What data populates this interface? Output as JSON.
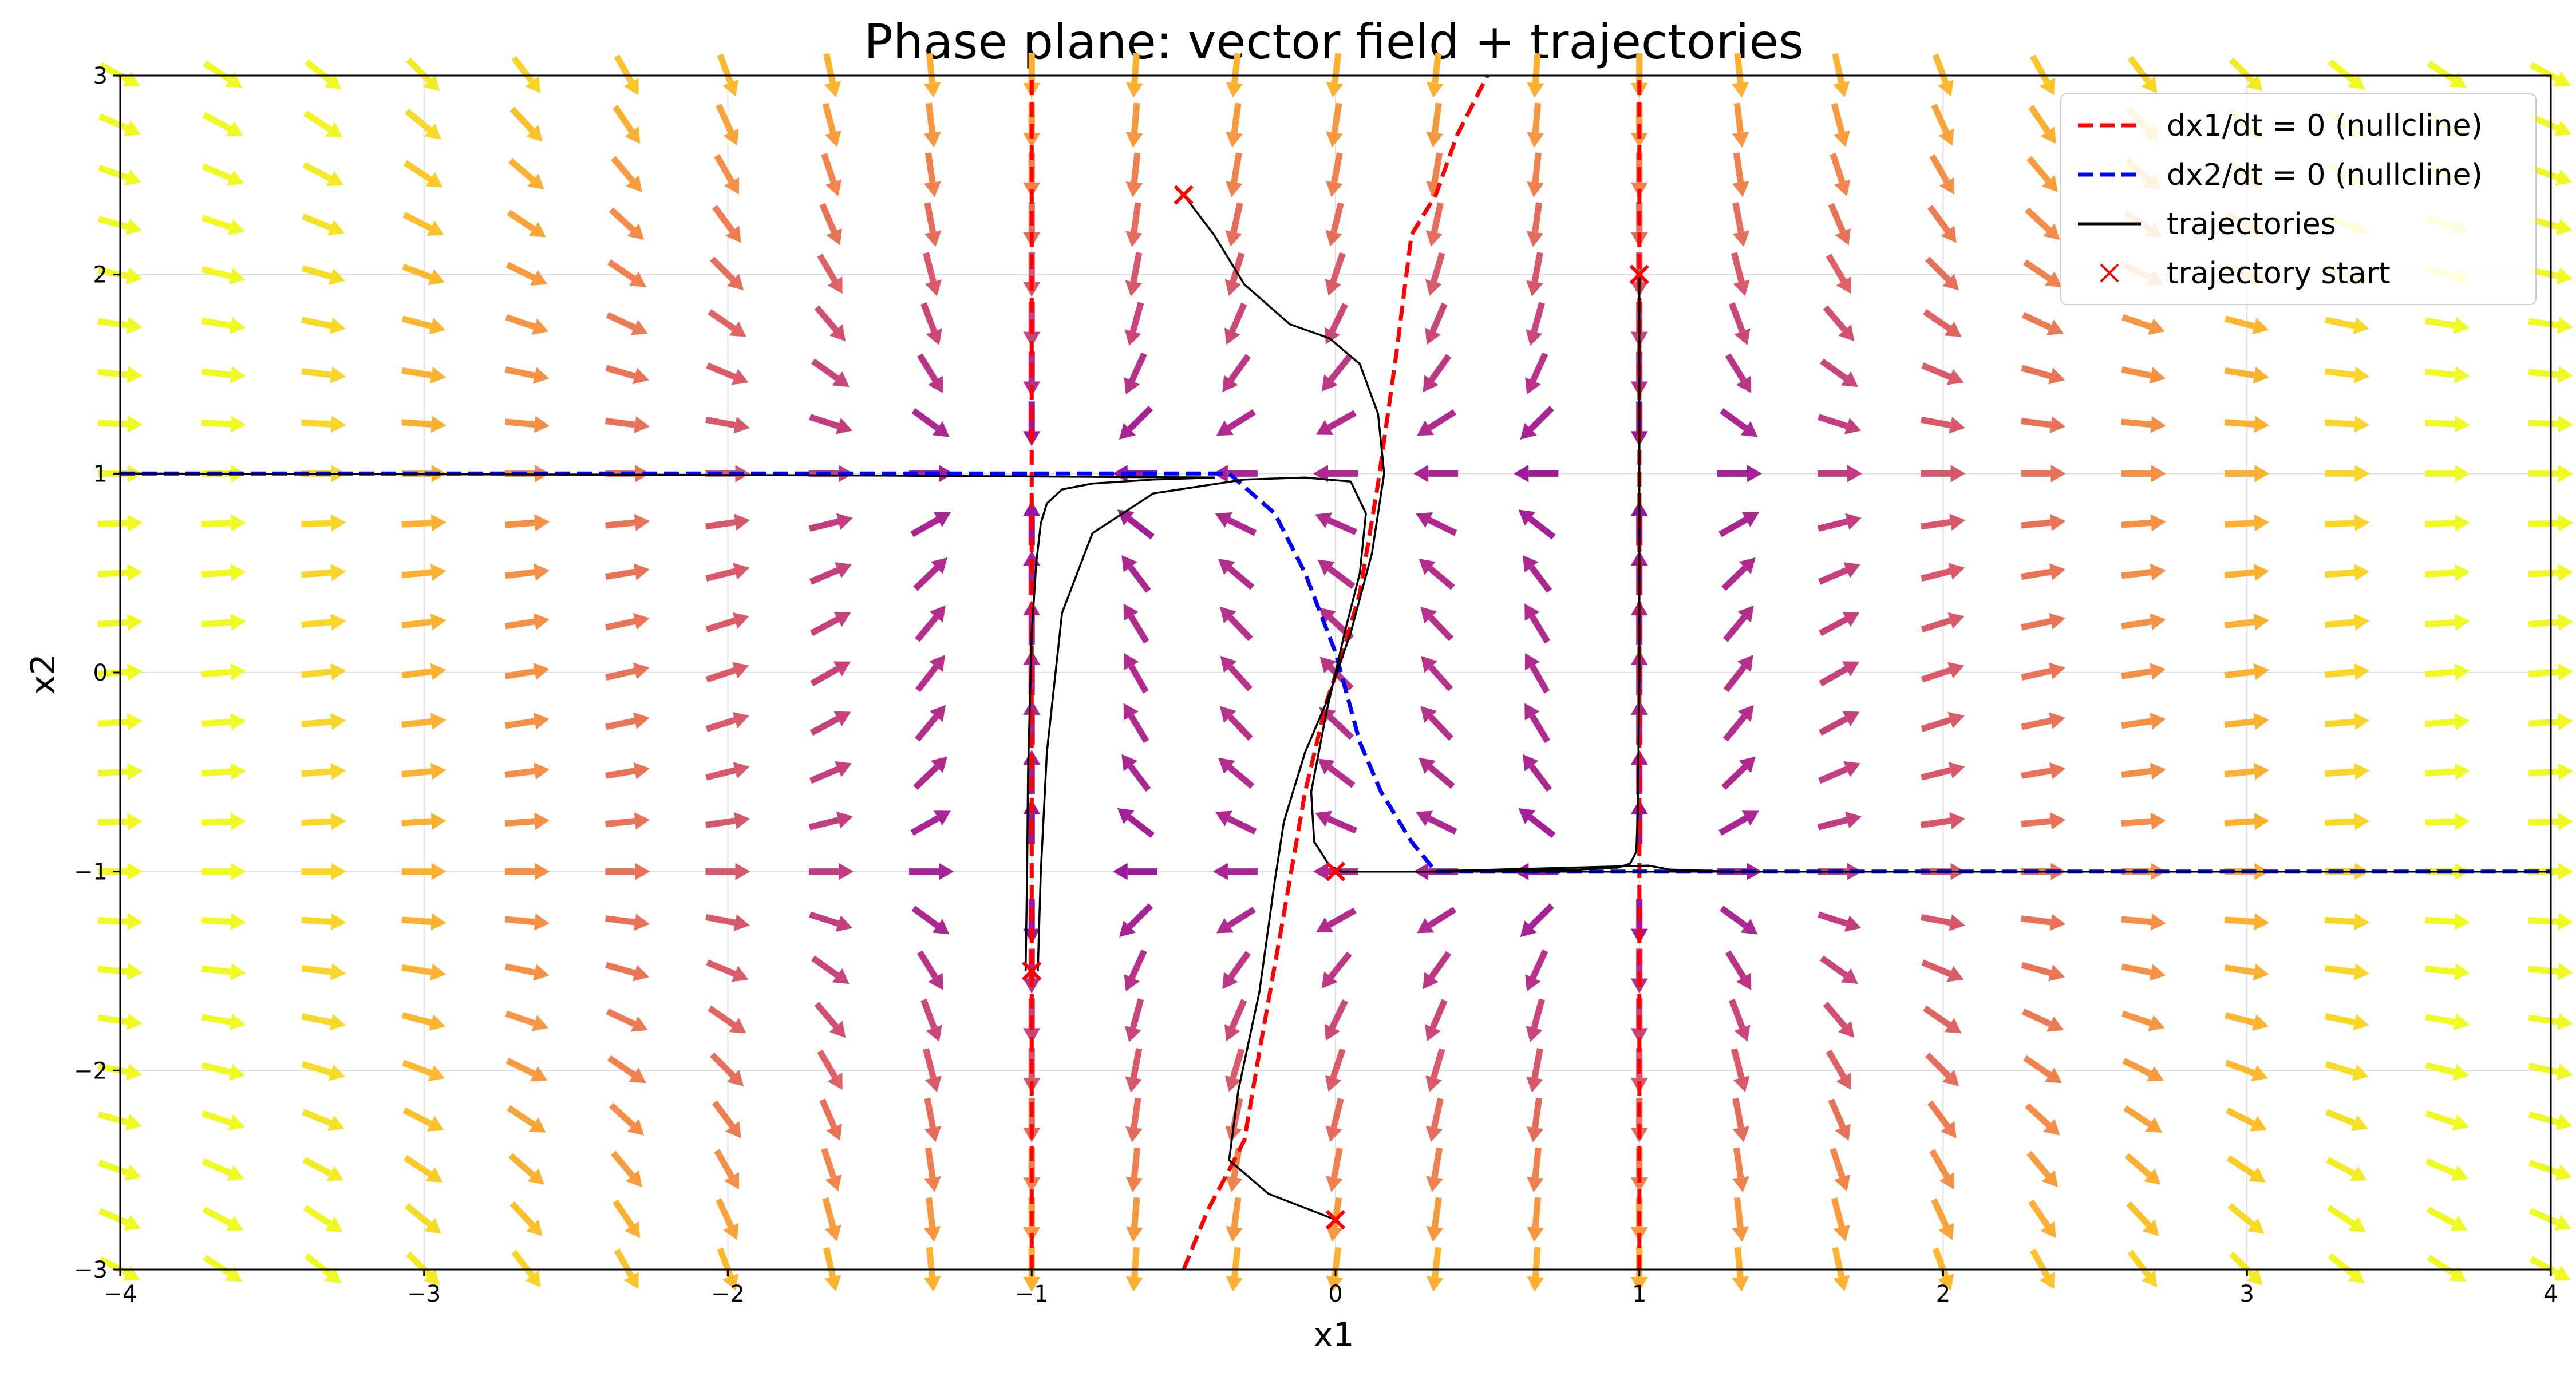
{
  "chart_data": {
    "type": "line",
    "title": "Phase plane: vector field + trajectories",
    "xlabel": "x1",
    "ylabel": "x2",
    "xlim": [
      -4,
      4
    ],
    "ylim": [
      -3,
      3
    ],
    "x_ticks": [
      -4,
      -3,
      -2,
      -1,
      0,
      1,
      2,
      3,
      4
    ],
    "y_ticks": [
      -3,
      -2,
      -1,
      0,
      1,
      2,
      3
    ],
    "x_tick_labels": [
      "−4",
      "−3",
      "−2",
      "−1",
      "0",
      "1",
      "2",
      "3",
      "4"
    ],
    "y_tick_labels": [
      "−3",
      "−2",
      "−1",
      "0",
      "1",
      "2",
      "3"
    ],
    "grid": true,
    "legend_position": "top-right",
    "legend": [
      {
        "label": "dx1/dt = 0 (nullcline)",
        "style": "dashed",
        "color": "#ff0000"
      },
      {
        "label": "dx2/dt = 0 (nullcline)",
        "style": "dashed",
        "color": "#0000ff"
      },
      {
        "label": "trajectories",
        "style": "solid",
        "color": "#000000"
      },
      {
        "label": "trajectory start",
        "style": "marker-x",
        "color": "#ff0000"
      }
    ],
    "vector_field": {
      "colormap": "plasma",
      "x_grid": [
        -4.0,
        -3.66,
        -3.33,
        -3.0,
        -2.66,
        -2.33,
        -2.0,
        -1.66,
        -1.33,
        -1.0,
        -0.66,
        -0.33,
        0.0,
        0.33,
        0.66,
        1.0,
        1.33,
        1.66,
        2.0,
        2.33,
        2.66,
        3.0,
        3.33,
        3.66,
        4.0
      ],
      "y_grid": [
        -3.0,
        -2.75,
        -2.5,
        -2.25,
        -2.0,
        -1.75,
        -1.5,
        -1.25,
        -1.0,
        -0.75,
        -0.5,
        -0.25,
        0.0,
        0.25,
        0.5,
        0.75,
        1.0,
        1.25,
        1.5,
        1.75,
        2.0,
        2.25,
        2.5,
        2.75,
        3.0
      ]
    },
    "series": [
      {
        "kind": "nullcline_dx1",
        "color": "#ff0000",
        "segments": [
          {
            "x": [
              -1,
              -1
            ],
            "y": [
              -3,
              3
            ]
          },
          {
            "x": [
              1,
              1
            ],
            "y": [
              -3,
              3
            ]
          },
          {
            "x": [
              -0.5,
              -0.42,
              -0.35,
              -0.3,
              -0.25,
              -0.18,
              -0.1,
              -0.03,
              0.02,
              0.08,
              0.14,
              0.2,
              0.25,
              0.33,
              0.4,
              0.5
            ],
            "y": [
              -3.0,
              -2.7,
              -2.5,
              -2.35,
              -1.9,
              -1.3,
              -0.6,
              -0.15,
              0.08,
              0.4,
              0.95,
              1.6,
              2.2,
              2.4,
              2.7,
              3.0
            ]
          }
        ]
      },
      {
        "kind": "nullcline_dx2",
        "color": "#0000ff",
        "segments": [
          {
            "x": [
              -4,
              -0.35,
              -0.2,
              -0.1,
              0.0,
              0.08,
              0.15,
              0.25,
              0.33,
              4.0
            ],
            "y": [
              1,
              1,
              0.8,
              0.5,
              0.1,
              -0.35,
              -0.6,
              -0.85,
              -1,
              -1
            ]
          }
        ]
      },
      {
        "kind": "trajectory",
        "color": "#000000",
        "x": [
          -1.02,
          -1.015,
          -1.012,
          -1.0,
          -0.985,
          -0.97,
          -0.95,
          -0.9,
          -0.8,
          -0.6,
          -0.4,
          -1.5,
          -2.5,
          -4.0
        ],
        "y": [
          -1.5,
          -1.0,
          -0.5,
          0.2,
          0.55,
          0.75,
          0.85,
          0.92,
          0.95,
          0.97,
          0.98,
          0.99,
          0.995,
          1.0
        ]
      },
      {
        "kind": "trajectory",
        "color": "#000000",
        "x": [
          -0.98,
          -0.97,
          -0.95,
          -0.9,
          -0.8,
          -0.6,
          -0.3,
          -0.1,
          0.05,
          0.1,
          0.08,
          0.03,
          -0.03,
          -0.08,
          -0.07,
          -0.02,
          0.02,
          0.1,
          0.33,
          1.0,
          4.0
        ],
        "y": [
          -1.5,
          -1.0,
          -0.4,
          0.3,
          0.7,
          0.9,
          0.97,
          0.98,
          0.96,
          0.8,
          0.5,
          0.2,
          -0.2,
          -0.6,
          -0.85,
          -0.97,
          -1.0,
          -1.0,
          -1.0,
          -1.0,
          -1.0
        ]
      },
      {
        "kind": "trajectory",
        "color": "#000000",
        "x": [
          -0.5,
          -0.4,
          -0.3,
          -0.15,
          -0.02,
          0.08,
          0.14,
          0.16,
          0.12,
          0.05,
          -0.03,
          -0.1,
          -0.17,
          -0.2,
          -0.25,
          -0.32,
          -0.35,
          -0.22,
          -0.05,
          0.0
        ],
        "y": [
          2.4,
          2.2,
          1.95,
          1.75,
          1.68,
          1.55,
          1.3,
          1.0,
          0.6,
          0.2,
          -0.15,
          -0.4,
          -0.75,
          -1.05,
          -1.6,
          -2.1,
          -2.45,
          -2.62,
          -2.72,
          -2.75
        ]
      },
      {
        "kind": "trajectory",
        "color": "#000000",
        "x": [
          1.0,
          1.0,
          1.0,
          0.995,
          0.99,
          0.97,
          0.93,
          0.8,
          0.5,
          0.33,
          0.2,
          0.15,
          0.3,
          1.03,
          1.1,
          1.3,
          2.0,
          4.0
        ],
        "y": [
          2.0,
          1.0,
          0.0,
          -0.7,
          -0.9,
          -0.96,
          -0.98,
          -0.99,
          -1.0,
          -1.0,
          -1.0,
          -1.0,
          -1.0,
          -0.97,
          -0.99,
          -1.0,
          -1.0,
          -1.0
        ]
      }
    ],
    "trajectory_starts": [
      {
        "x": -1.0,
        "y": -1.5
      },
      {
        "x": -1.0,
        "y": -1.5
      },
      {
        "x": -0.5,
        "y": 2.4
      },
      {
        "x": 1.0,
        "y": 2.0
      },
      {
        "x": 0.0,
        "y": -1.0
      },
      {
        "x": 0.0,
        "y": -2.75
      }
    ]
  }
}
